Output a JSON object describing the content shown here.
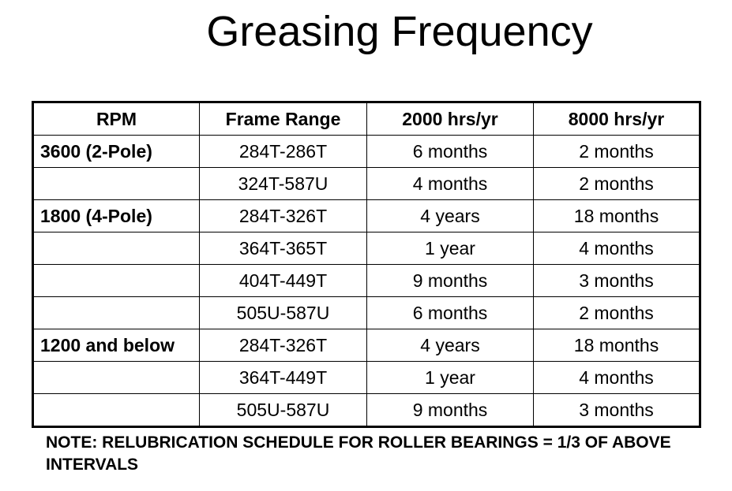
{
  "title": "Greasing Frequency",
  "table": {
    "headers": [
      "RPM",
      "Frame Range",
      "2000 hrs/yr",
      "8000 hrs/yr"
    ],
    "rows": [
      [
        "3600 (2-Pole)",
        "284T-286T",
        "6 months",
        "2 months"
      ],
      [
        "",
        "324T-587U",
        "4 months",
        "2 months"
      ],
      [
        "1800 (4-Pole)",
        "284T-326T",
        "4 years",
        "18 months"
      ],
      [
        "",
        "364T-365T",
        "1 year",
        "4 months"
      ],
      [
        "",
        "404T-449T",
        "9 months",
        "3 months"
      ],
      [
        "",
        "505U-587U",
        "6 months",
        "2 months"
      ],
      [
        "1200 and below",
        "284T-326T",
        "4 years",
        "18 months"
      ],
      [
        "",
        "364T-449T",
        "1 year",
        "4 months"
      ],
      [
        "",
        "505U-587U",
        "9 months",
        "3 months"
      ]
    ]
  },
  "note": "NOTE: RELUBRICATION SCHEDULE FOR ROLLER BEARINGS = 1/3 OF ABOVE INTERVALS"
}
